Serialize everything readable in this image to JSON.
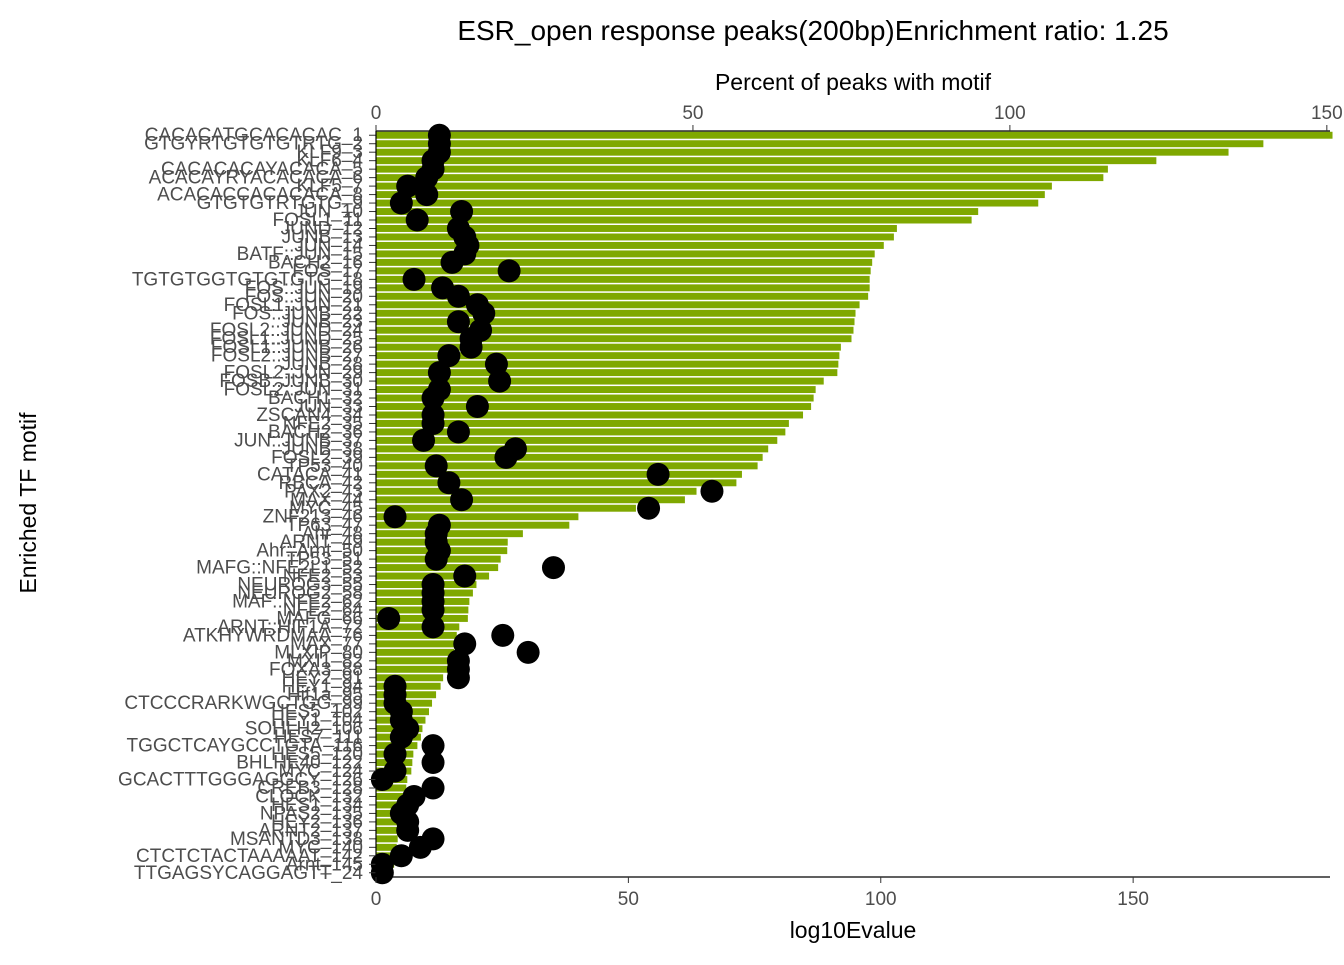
{
  "chart_data": {
    "type": "bar",
    "title": "ESR_open response peaks(200bp)Enrichment ratio: 1.25",
    "ylabel": "Enriched TF motif",
    "xlabel": "log10Evalue",
    "secondary_xlabel": "Percent of peaks with motif",
    "xlim": [
      0,
      189
    ],
    "xticks": [
      0,
      50,
      100,
      150
    ],
    "secondary_xlim": [
      0,
      150.5
    ],
    "secondary_xticks": [
      0,
      50,
      100,
      150
    ],
    "bar_color": "#7fa800",
    "point_color": "#000000",
    "grid": false,
    "legend": "none",
    "categories": [
      "CACACATGCACACAC_1",
      "GTGYRTGTGTGTRTG_2",
      "KLF9_3",
      "KLF6_4",
      "CACACACAYACACA_5",
      "ACACAYRYACACACA_6",
      "KLF5_7",
      "ACACACCACACACA_8",
      "GTGTGTRTGTG_9",
      "JUN_10",
      "FOSL1_11",
      "JUND_12",
      "JUNB_13",
      "JUN_14",
      "BATF::JUN_15",
      "BACH2_16",
      "FOS_17",
      "TGTGTGGTGTGTGTG_18",
      "FOS::JUN_19",
      "FOS::JUN_20",
      "FOSL1::JUN_21",
      "FOS::JUNB_22",
      "JUNB_23",
      "FOSL2::JUND_24",
      "FOSL1::JUND_25",
      "FOSL1::JUNB_26",
      "FOSL2::JUNB_27",
      "JUNB_28",
      "FOSL2::JUN_29",
      "FOSB::JUNB_30",
      "FOSL2::JUN_31",
      "BACH1_32",
      "JUN_33",
      "ZSCAN4_34",
      "NFE2_35",
      "BACH2_36",
      "JUN::JUNB_37",
      "JUNB_38",
      "FOSL2_39",
      "TP53_40",
      "CATACA_41",
      "RBCA_42",
      "PAX2_43",
      "MAX_44",
      "MYC_45",
      "ZNF213_46",
      "TP63_47",
      "Ahr_48",
      "ARNT_49",
      "Ahr::Arnt_50",
      "TP53_51",
      "MAFG::NFE2L1_52",
      "NFE2_53",
      "NEUROG3_55",
      "NEUROG2_58",
      "MAF::NFE2_62",
      "NFE2_64",
      "MAFG_66",
      "ARNT::HIF1A_72",
      "ATKHYWRDMAA_76",
      "MAX_77",
      "MLXIP_80",
      "MXI1_82",
      "FOXA3_88",
      "HEY2_91",
      "HEY1_94",
      "Hif1a_95",
      "CTCCCRARKWGCTGG_99",
      "HES5_102",
      "HEY1_104",
      "SOHLH2_106",
      "HES7_111",
      "TGGCTCAYGCCTGTA_116",
      "HES5_120",
      "BHLHE40_122",
      "MYC_124",
      "GCACTTTGGGAGGCY_126",
      "CREB3_128",
      "CLOCK_132",
      "HES1_134",
      "NPAS2_135",
      "HEY2_136",
      "ARNT2_137",
      "MSANTD3_138",
      "MYC_140",
      "CTCTCTACTAAAAAT_142",
      "Arnt_145",
      "TTGAGSYCAGGAGTT_24"
    ],
    "bar_values": [
      189.5,
      175.8,
      168.9,
      154.6,
      145.0,
      144.1,
      133.9,
      132.5,
      131.2,
      119.3,
      118.0,
      103.2,
      102.6,
      100.6,
      98.8,
      98.3,
      98.0,
      97.8,
      97.8,
      97.5,
      95.8,
      95.0,
      94.8,
      94.6,
      94.2,
      92.1,
      91.8,
      91.6,
      91.4,
      88.7,
      87.1,
      86.7,
      86.2,
      84.6,
      81.8,
      81.1,
      79.5,
      77.7,
      76.6,
      75.6,
      72.5,
      71.4,
      63.5,
      61.2,
      51.5,
      40.1,
      38.3,
      29.1,
      26.1,
      26.0,
      24.7,
      24.2,
      22.4,
      19.9,
      19.2,
      18.5,
      18.3,
      18.2,
      16.5,
      16.0,
      15.8,
      15.5,
      15.2,
      14.5,
      13.3,
      12.8,
      11.9,
      11.1,
      10.5,
      9.8,
      9.2,
      8.9,
      8.2,
      7.4,
      7.2,
      7.0,
      6.2,
      6.0,
      5.5,
      5.1,
      4.8,
      4.6,
      4.4,
      4.3,
      4.1,
      3.9,
      3.6,
      2.7
    ],
    "percent_values": [
      10.0,
      10.0,
      10.0,
      9.0,
      9.0,
      8.0,
      5.0,
      8.0,
      4.0,
      13.5,
      6.5,
      13.0,
      14.0,
      14.5,
      14.0,
      12.0,
      21.0,
      6.0,
      10.5,
      13.0,
      16.0,
      17.0,
      13.0,
      16.5,
      15.0,
      15.0,
      11.5,
      19.0,
      10.0,
      19.5,
      10.0,
      9.0,
      16.0,
      9.0,
      9.0,
      13.0,
      7.5,
      22.0,
      20.5,
      9.5,
      44.5,
      11.5,
      53.0,
      13.5,
      43.0,
      3.0,
      10.0,
      9.5,
      9.5,
      10.0,
      9.5,
      28.0,
      14.0,
      9.0,
      9.0,
      9.0,
      9.0,
      2.0,
      9.0,
      20.0,
      14.0,
      24.0,
      13.0,
      13.0,
      13.0,
      3.0,
      3.0,
      3.0,
      4.0,
      4.0,
      5.0,
      4.0,
      9.0,
      3.0,
      9.0,
      3.0,
      1.0,
      9.0,
      6.0,
      5.0,
      4.0,
      5.0,
      5.0,
      9.0,
      7.0,
      4.0,
      1.0,
      1.0
    ]
  }
}
